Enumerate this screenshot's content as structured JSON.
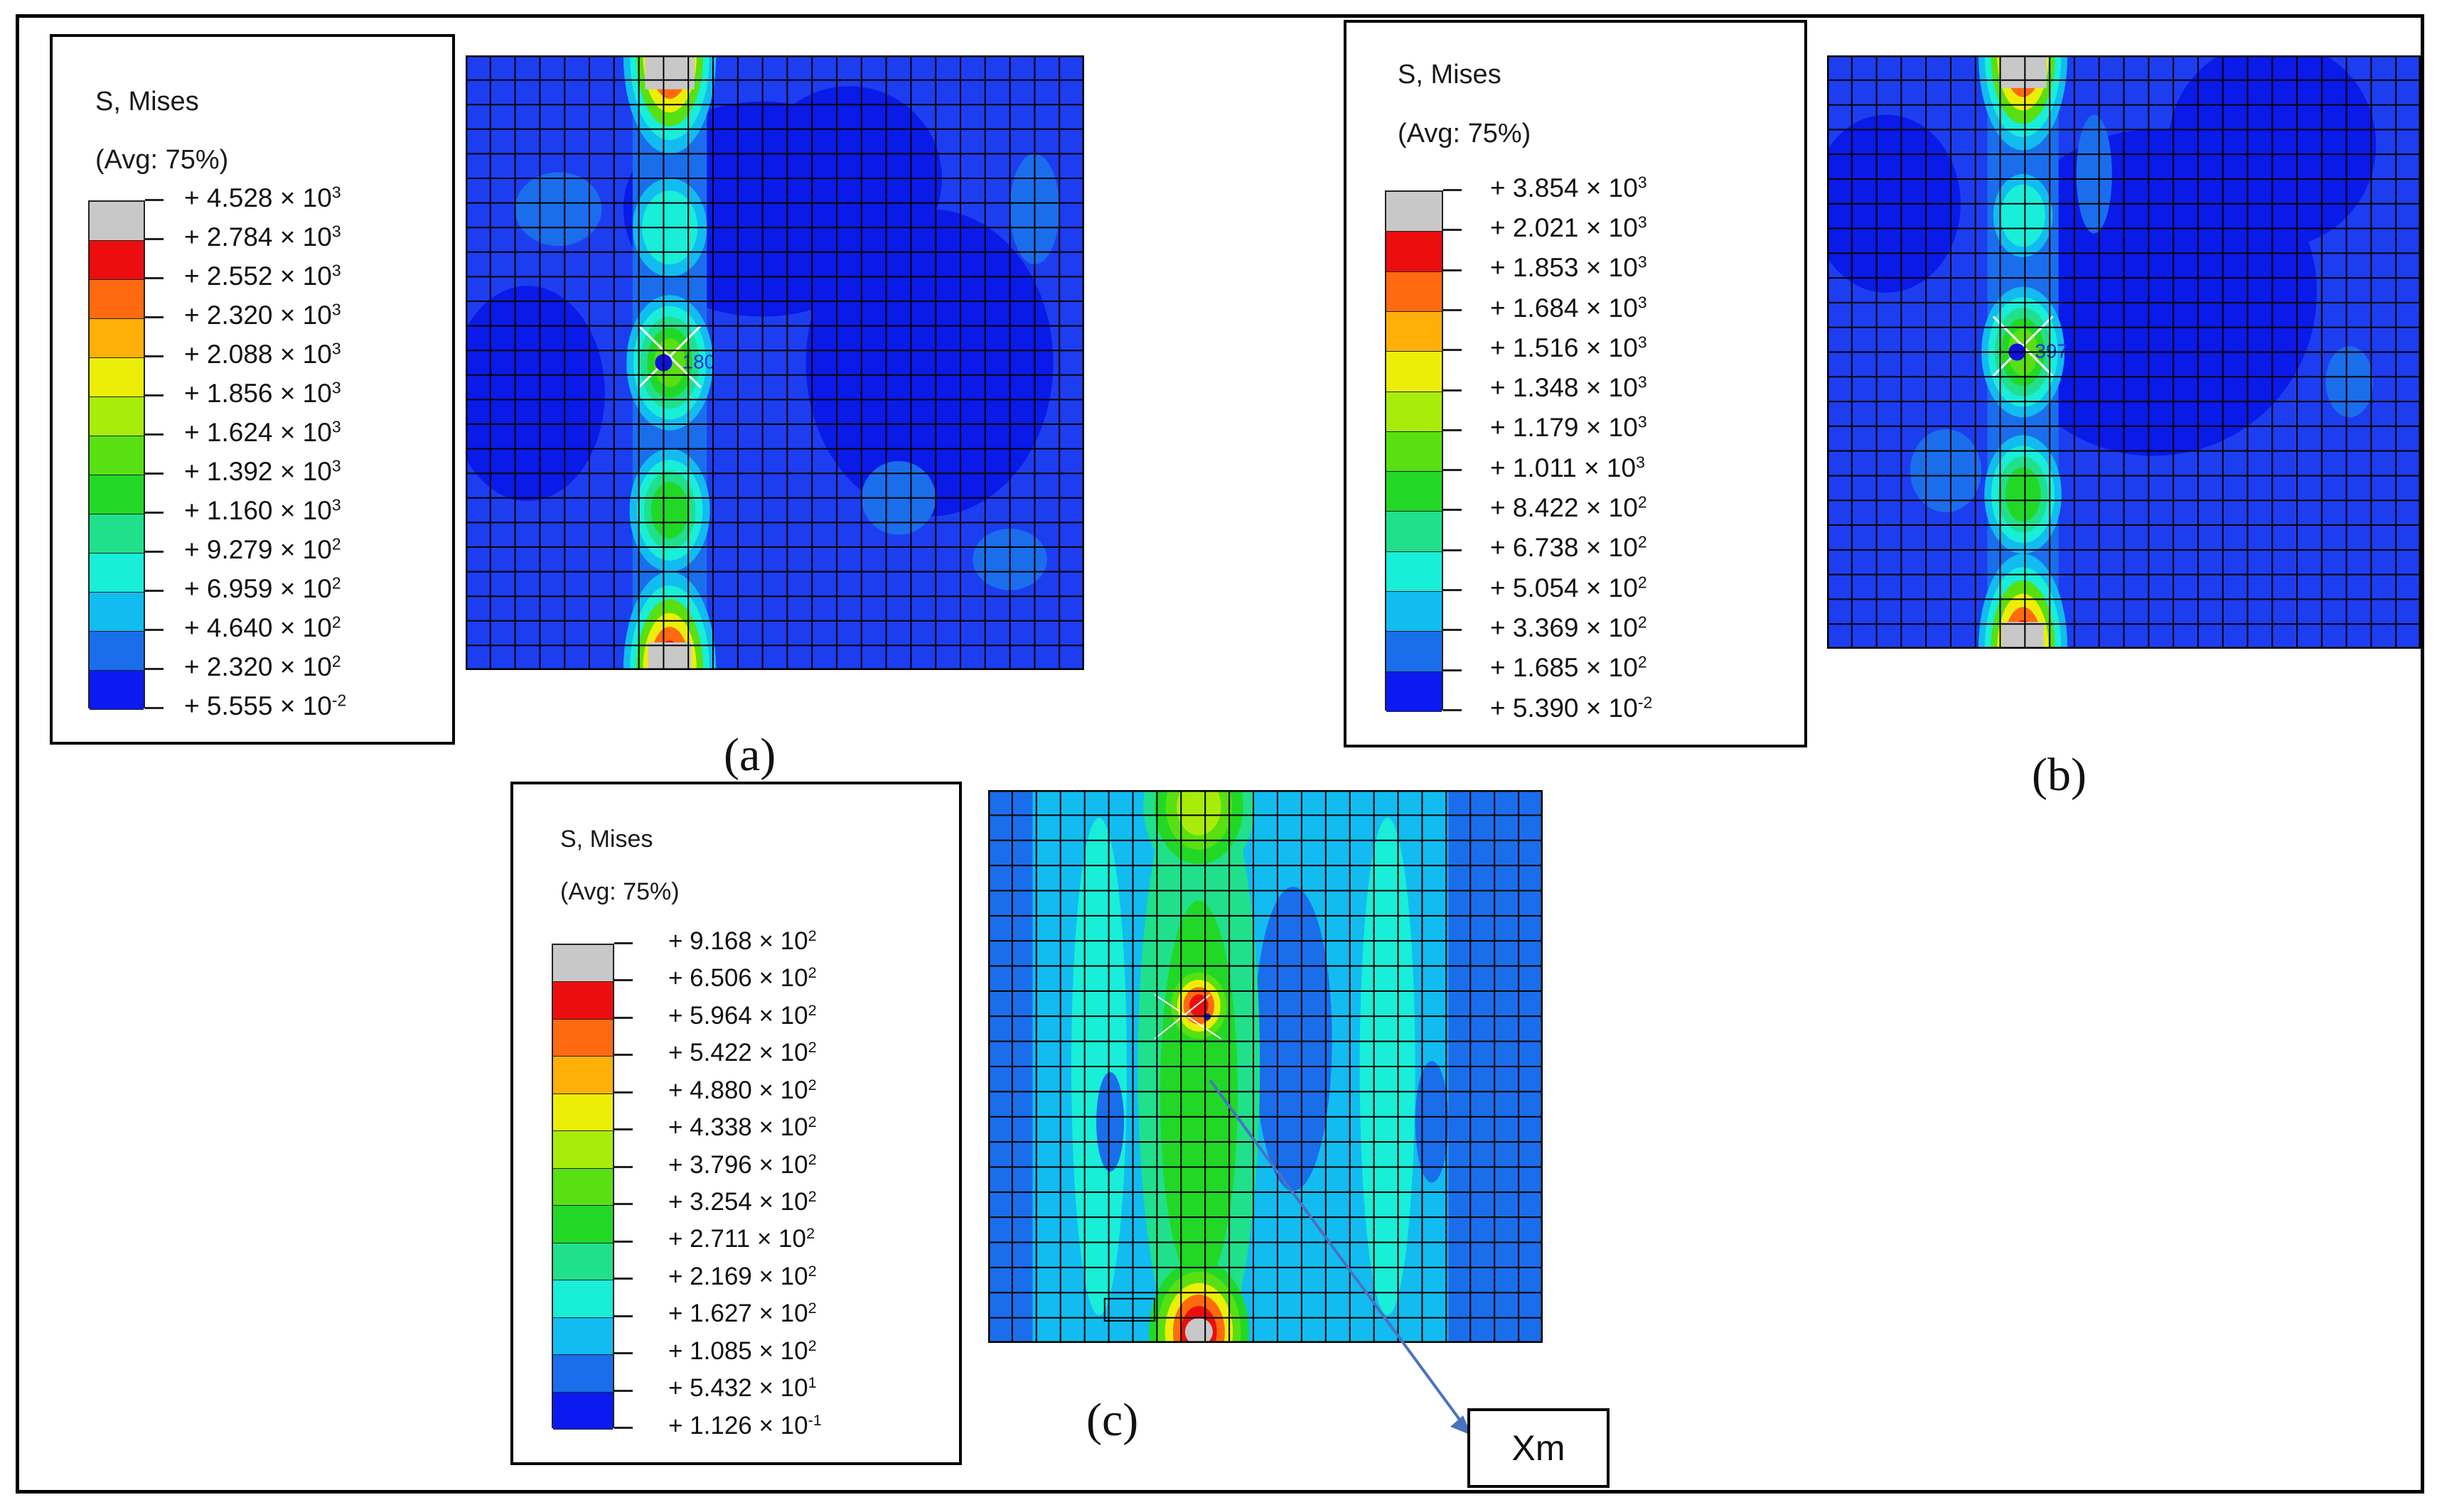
{
  "figure": {
    "panels": [
      {
        "id": "a",
        "caption": "(a)",
        "legend_title": "S, Mises",
        "legend_avg": "(Avg: 75%)",
        "levels": [
          {
            "value": "+ 4.528 × 10",
            "exp": "3"
          },
          {
            "value": "+ 2.784 × 10",
            "exp": "3"
          },
          {
            "value": "+ 2.552 × 10",
            "exp": "3"
          },
          {
            "value": "+ 2.320 × 10",
            "exp": "3"
          },
          {
            "value": "+ 2.088 × 10",
            "exp": "3"
          },
          {
            "value": "+ 1.856 × 10",
            "exp": "3"
          },
          {
            "value": "+ 1.624 × 10",
            "exp": "3"
          },
          {
            "value": "+ 1.392 × 10",
            "exp": "3"
          },
          {
            "value": "+ 1.160 × 10",
            "exp": "3"
          },
          {
            "value": "+ 9.279 × 10",
            "exp": "2"
          },
          {
            "value": "+ 6.959 × 10",
            "exp": "2"
          },
          {
            "value": "+ 4.640 × 10",
            "exp": "2"
          },
          {
            "value": "+ 2.320 × 10",
            "exp": "2"
          },
          {
            "value": "+ 5.555 × 10",
            "exp": "-2"
          }
        ],
        "probe_label": "180"
      },
      {
        "id": "b",
        "caption": "(b)",
        "legend_title": "S, Mises",
        "legend_avg": "(Avg: 75%)",
        "levels": [
          {
            "value": "+ 3.854 × 10",
            "exp": "3"
          },
          {
            "value": "+ 2.021 × 10",
            "exp": "3"
          },
          {
            "value": "+ 1.853 × 10",
            "exp": "3"
          },
          {
            "value": "+ 1.684 × 10",
            "exp": "3"
          },
          {
            "value": "+ 1.516 × 10",
            "exp": "3"
          },
          {
            "value": "+ 1.348 × 10",
            "exp": "3"
          },
          {
            "value": "+ 1.179 × 10",
            "exp": "3"
          },
          {
            "value": "+ 1.011 × 10",
            "exp": "3"
          },
          {
            "value": "+ 8.422 × 10",
            "exp": "2"
          },
          {
            "value": "+ 6.738 × 10",
            "exp": "2"
          },
          {
            "value": "+ 5.054 × 10",
            "exp": "2"
          },
          {
            "value": "+ 3.369 × 10",
            "exp": "2"
          },
          {
            "value": "+ 1.685 × 10",
            "exp": "2"
          },
          {
            "value": "+ 5.390 × 10",
            "exp": "-2"
          }
        ],
        "probe_label": "397"
      },
      {
        "id": "c",
        "caption": "(c)",
        "legend_title": "S, Mises",
        "legend_avg": "(Avg: 75%)",
        "levels": [
          {
            "value": "+ 9.168 × 10",
            "exp": "2"
          },
          {
            "value": "+ 6.506 × 10",
            "exp": "2"
          },
          {
            "value": "+ 5.964 × 10",
            "exp": "2"
          },
          {
            "value": "+ 5.422 × 10",
            "exp": "2"
          },
          {
            "value": "+ 4.880 × 10",
            "exp": "2"
          },
          {
            "value": "+ 4.338 × 10",
            "exp": "2"
          },
          {
            "value": "+ 3.796 × 10",
            "exp": "2"
          },
          {
            "value": "+ 3.254 × 10",
            "exp": "2"
          },
          {
            "value": "+ 2.711 × 10",
            "exp": "2"
          },
          {
            "value": "+ 2.169 × 10",
            "exp": "2"
          },
          {
            "value": "+ 1.627 × 10",
            "exp": "2"
          },
          {
            "value": "+ 1.085 × 10",
            "exp": "2"
          },
          {
            "value": "+ 5.432 × 10",
            "exp": "1"
          },
          {
            "value": "+ 1.126 × 10",
            "exp": "-1"
          }
        ],
        "probe_label": ""
      }
    ],
    "callout_label": "Xm",
    "colors": {
      "bands": [
        "#c8c8c8",
        "#ec0e0e",
        "#ff6a10",
        "#ffb008",
        "#ecee08",
        "#a8ec0c",
        "#58e012",
        "#22d826",
        "#20e08c",
        "#18eed8",
        "#12bcf0",
        "#1a6eec",
        "#0a1af0"
      ],
      "grid": "#000000",
      "probe_marker": "#1010e0",
      "arrow": "#4a72c0"
    }
  }
}
